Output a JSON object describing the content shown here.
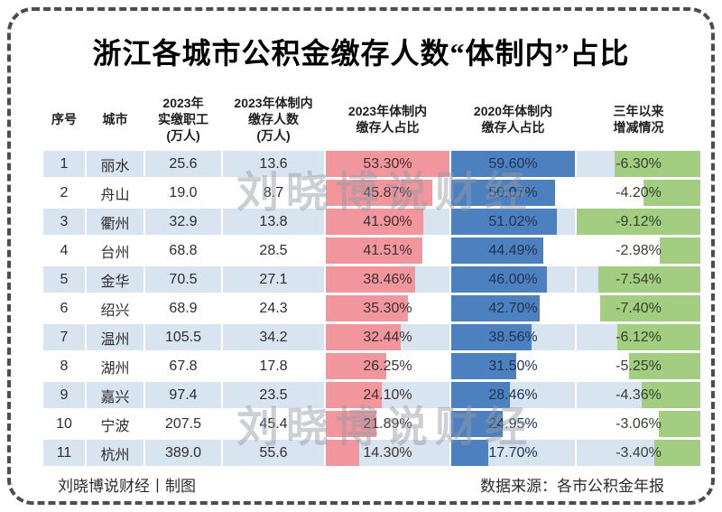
{
  "title": "浙江各城市公积金缴存人数“体制内”占比",
  "table": {
    "headers": [
      "序号",
      "城市",
      "2023年\n实缴职工\n(万人)",
      "2023年体制内\n缴存人数\n(万人)",
      "2023年体制内\n缴存人占比",
      "2020年体制内\n缴存人占比",
      "三年以来\n增减情况"
    ]
  },
  "chart_data": {
    "type": "table",
    "title": "浙江各城市公积金缴存人数“体制内”占比",
    "columns": [
      "序号",
      "城市",
      "2023年实缴职工(万人)",
      "2023年体制内缴存人数(万人)",
      "2023年体制内缴存人占比",
      "2020年体制内缴存人占比",
      "三年以来增减情况"
    ],
    "rows": [
      {
        "index": "1",
        "city": "丽水",
        "paid2023": "25.6",
        "insys2023": "13.6",
        "pct2023": "53.30%",
        "pct2020": "59.60%",
        "change": "-6.30%",
        "pct2023_val": 53.3,
        "pct2020_val": 59.6,
        "change_val": -6.3
      },
      {
        "index": "2",
        "city": "舟山",
        "paid2023": "19.0",
        "insys2023": "8.7",
        "pct2023": "45.87%",
        "pct2020": "50.07%",
        "change": "-4.20%",
        "pct2023_val": 45.87,
        "pct2020_val": 50.07,
        "change_val": -4.2
      },
      {
        "index": "3",
        "city": "衢州",
        "paid2023": "32.9",
        "insys2023": "13.8",
        "pct2023": "41.90%",
        "pct2020": "51.02%",
        "change": "-9.12%",
        "pct2023_val": 41.9,
        "pct2020_val": 51.02,
        "change_val": -9.12
      },
      {
        "index": "4",
        "city": "台州",
        "paid2023": "68.8",
        "insys2023": "28.5",
        "pct2023": "41.51%",
        "pct2020": "44.49%",
        "change": "-2.98%",
        "pct2023_val": 41.51,
        "pct2020_val": 44.49,
        "change_val": -2.98
      },
      {
        "index": "5",
        "city": "金华",
        "paid2023": "70.5",
        "insys2023": "27.1",
        "pct2023": "38.46%",
        "pct2020": "46.00%",
        "change": "-7.54%",
        "pct2023_val": 38.46,
        "pct2020_val": 46.0,
        "change_val": -7.54
      },
      {
        "index": "6",
        "city": "绍兴",
        "paid2023": "68.9",
        "insys2023": "24.3",
        "pct2023": "35.30%",
        "pct2020": "42.70%",
        "change": "-7.40%",
        "pct2023_val": 35.3,
        "pct2020_val": 42.7,
        "change_val": -7.4
      },
      {
        "index": "7",
        "city": "温州",
        "paid2023": "105.5",
        "insys2023": "34.2",
        "pct2023": "32.44%",
        "pct2020": "38.56%",
        "change": "-6.12%",
        "pct2023_val": 32.44,
        "pct2020_val": 38.56,
        "change_val": -6.12
      },
      {
        "index": "8",
        "city": "湖州",
        "paid2023": "67.8",
        "insys2023": "17.8",
        "pct2023": "26.25%",
        "pct2020": "31.50%",
        "change": "-5.25%",
        "pct2023_val": 26.25,
        "pct2020_val": 31.5,
        "change_val": -5.25
      },
      {
        "index": "9",
        "city": "嘉兴",
        "paid2023": "97.4",
        "insys2023": "23.5",
        "pct2023": "24.10%",
        "pct2020": "28.46%",
        "change": "-4.36%",
        "pct2023_val": 24.1,
        "pct2020_val": 28.46,
        "change_val": -4.36
      },
      {
        "index": "10",
        "city": "宁波",
        "paid2023": "207.5",
        "insys2023": "45.4",
        "pct2023": "21.89%",
        "pct2020": "24.95%",
        "change": "-3.06%",
        "pct2023_val": 21.89,
        "pct2020_val": 24.95,
        "change_val": -3.06
      },
      {
        "index": "11",
        "city": "杭州",
        "paid2023": "389.0",
        "insys2023": "55.6",
        "pct2023": "14.30%",
        "pct2020": "17.70%",
        "change": "-3.40%",
        "pct2023_val": 14.3,
        "pct2020_val": 17.7,
        "change_val": -3.4
      }
    ],
    "bar_columns": {
      "pct2023": {
        "color": "#f2969e",
        "max": 53.3,
        "anchor": "left"
      },
      "pct2020": {
        "color": "#4d80be",
        "max": 59.6,
        "anchor": "left"
      },
      "change": {
        "color": "#a3cd80",
        "max": 9.12,
        "anchor": "right"
      }
    },
    "layout": {
      "row_alt_color": "#d9e4f1",
      "border_color": "#4d4d4d"
    }
  },
  "watermark": {
    "text": "刘晓博说财经"
  },
  "footer": {
    "left": "刘晓博说财经丨制图",
    "right": "数据来源：各市公积金年报"
  }
}
